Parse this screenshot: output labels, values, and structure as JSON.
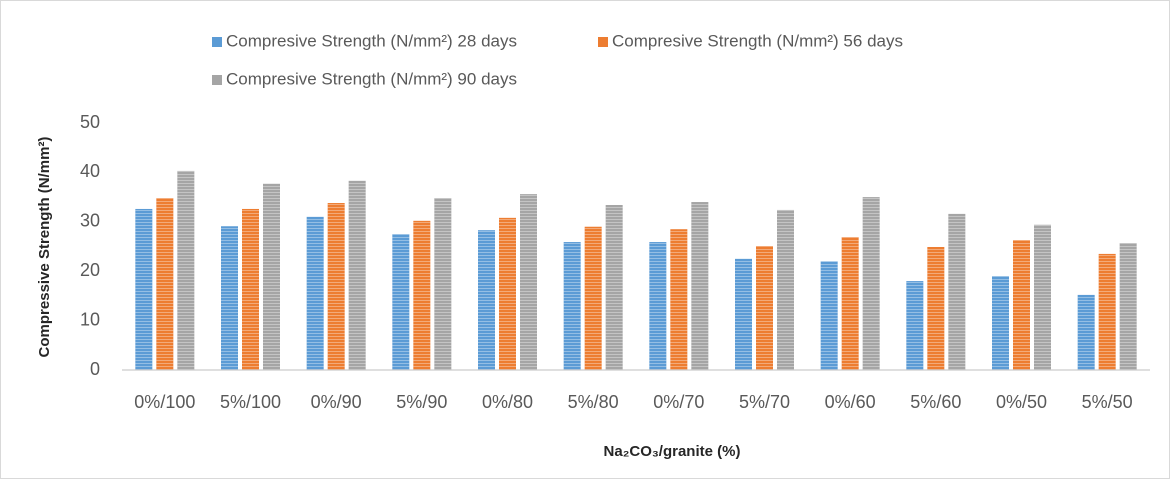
{
  "chart_data": {
    "type": "bar",
    "categories": [
      "0%/100",
      "5%/100",
      "0%/90",
      "5%/90",
      "0%/80",
      "5%/80",
      "0%/70",
      "5%/70",
      "0%/60",
      "5%/60",
      "0%/50",
      "5%/50"
    ],
    "series": [
      {
        "name": "Compresive Strength (N/mm²) 28 days",
        "color": "#5b9bd5",
        "values": [
          32.6,
          29.1,
          31,
          27.5,
          28.3,
          25.9,
          25.9,
          22.5,
          22,
          18,
          19,
          15.2
        ]
      },
      {
        "name": "Compresive Strength (N/mm²) 56 days",
        "color": "#ed7d31",
        "values": [
          34.8,
          32.6,
          33.8,
          30.2,
          30.8,
          29,
          28.5,
          25.1,
          26.9,
          24.9,
          26.3,
          23.5
        ]
      },
      {
        "name": "Compresive Strength (N/mm²) 90 days",
        "color": "#a5a5a5",
        "values": [
          40.3,
          37.7,
          38.3,
          34.8,
          35.6,
          33.4,
          34,
          32.4,
          35,
          31.6,
          29.4,
          25.7
        ]
      }
    ],
    "x_label": "Na₂CO₃/granite (%)",
    "y_label": "Compressive Strength (N/mm²)",
    "ylim": [
      0,
      50
    ],
    "yticks": [
      0,
      10,
      20,
      30,
      40,
      50
    ],
    "grid": false
  }
}
